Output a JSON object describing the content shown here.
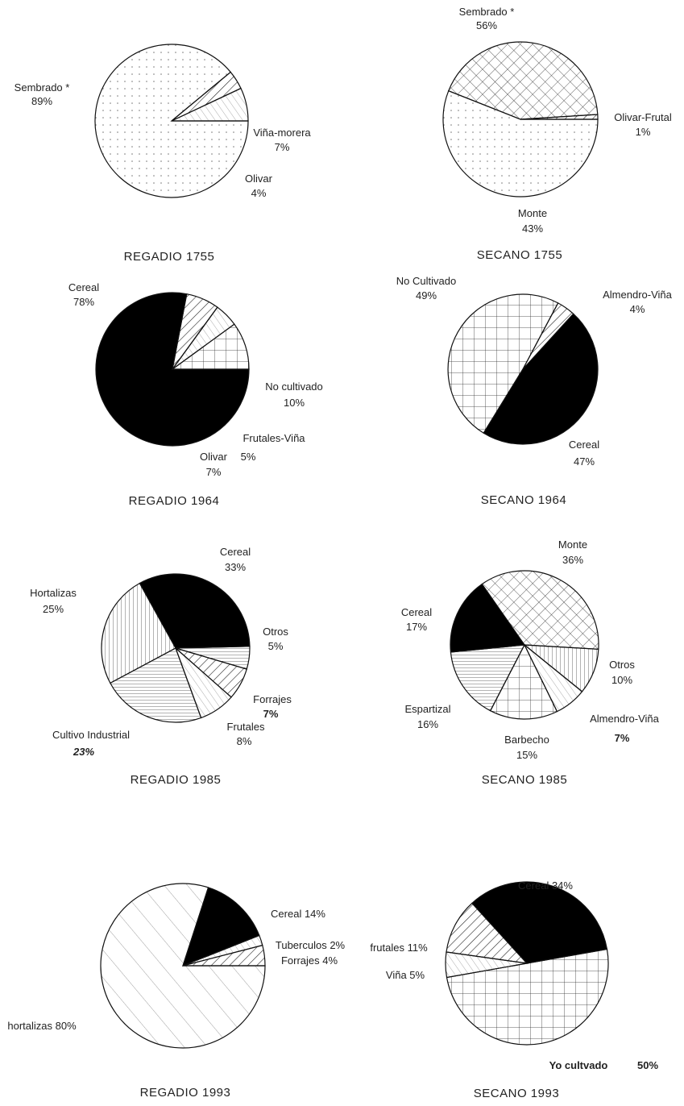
{
  "chart_data": [
    {
      "id": "regadio_1755",
      "type": "pie",
      "title": "REGADIO 1755",
      "slices": [
        {
          "label": "Sembrado *",
          "value": 89,
          "pct_label": "89%",
          "pattern": "dots"
        },
        {
          "label": "Olivar",
          "value": 4,
          "pct_label": "4%",
          "pattern": "hatch"
        },
        {
          "label": "Viña-morera",
          "value": 7,
          "pct_label": "7%",
          "pattern": "lighthatch"
        }
      ]
    },
    {
      "id": "secano_1755",
      "type": "pie",
      "title": "SECANO 1755",
      "slices": [
        {
          "label": "Sembrado *",
          "value": 56,
          "pct_label": "56%",
          "pattern": "dots"
        },
        {
          "label": "Monte",
          "value": 43,
          "pct_label": "43%",
          "pattern": "crosshatch"
        },
        {
          "label": "Olivar-Frutal",
          "value": 1,
          "pct_label": "1%",
          "pattern": "hatch"
        }
      ]
    },
    {
      "id": "regadio_1964",
      "type": "pie",
      "title": "REGADIO 1964",
      "slices": [
        {
          "label": "Cereal",
          "value": 78,
          "pct_label": "78%",
          "pattern": "black"
        },
        {
          "label": "Olivar",
          "value": 7,
          "pct_label": "7%",
          "pattern": "hatch"
        },
        {
          "label": "Frutales-Viña",
          "value": 5,
          "pct_label": "5%",
          "pattern": "lighthatch"
        },
        {
          "label": "No cultivado",
          "value": 10,
          "pct_label": "10%",
          "pattern": "grid"
        }
      ]
    },
    {
      "id": "secano_1964",
      "type": "pie",
      "title": "SECANO 1964",
      "slices": [
        {
          "label": "Almendro-Viña",
          "value": 4,
          "pct_label": "4%",
          "pattern": "hatch"
        },
        {
          "label": "Cereal",
          "value": 47,
          "pct_label": "47%",
          "pattern": "black"
        },
        {
          "label": "No Cultivado",
          "value": 49,
          "pct_label": "49%",
          "pattern": "grid"
        }
      ]
    },
    {
      "id": "regadio_1985",
      "type": "pie",
      "title": "REGADIO 1985",
      "slices": [
        {
          "label": "Cereal",
          "value": 33,
          "pct_label": "33%",
          "pattern": "black"
        },
        {
          "label": "Otros",
          "value": 5,
          "pct_label": "5%",
          "pattern": "hlines"
        },
        {
          "label": "Forrajes",
          "value": 7,
          "pct_label": "7%",
          "pattern": "hatch"
        },
        {
          "label": "Frutales",
          "value": 8,
          "pct_label": "8%",
          "pattern": "lighthatch"
        },
        {
          "label": "Cultivo Industrial",
          "value": 23,
          "pct_label": "23%",
          "pattern": "hlines"
        },
        {
          "label": "Hortalizas",
          "value": 25,
          "pct_label": "25%",
          "pattern": "vlines"
        }
      ]
    },
    {
      "id": "secano_1985",
      "type": "pie",
      "title": "SECANO 1985",
      "slices": [
        {
          "label": "Monte",
          "value": 36,
          "pct_label": "36%",
          "pattern": "crosshatch"
        },
        {
          "label": "Otros",
          "value": 10,
          "pct_label": "10%",
          "pattern": "vlines"
        },
        {
          "label": "Almendro-Viña",
          "value": 7,
          "pct_label": "7%",
          "pattern": "lighthatch"
        },
        {
          "label": "Barbecho",
          "value": 15,
          "pct_label": "15%",
          "pattern": "grid"
        },
        {
          "label": "Espartizal",
          "value": 16,
          "pct_label": "16%",
          "pattern": "hlines"
        },
        {
          "label": "Cereal",
          "value": 17,
          "pct_label": "17%",
          "pattern": "black"
        }
      ]
    },
    {
      "id": "regadio_1993",
      "type": "pie",
      "title": "REGADIO 1993",
      "slices": [
        {
          "label": "Cereal",
          "value": 14,
          "pct_label": "14%",
          "pattern": "black"
        },
        {
          "label": "Tuberculos",
          "value": 2,
          "pct_label": "2%",
          "pattern": "lighthatch"
        },
        {
          "label": "Forrajes",
          "value": 4,
          "pct_label": "4%",
          "pattern": "hatch"
        },
        {
          "label": "hortalizas",
          "value": 80,
          "pct_label": "80%",
          "pattern": "widehatch"
        }
      ]
    },
    {
      "id": "secano_1993",
      "type": "pie",
      "title": "SECANO 1993",
      "slices": [
        {
          "label": "No cultivado",
          "value": 50,
          "pct_label": "50%",
          "pattern": "grid"
        },
        {
          "label": "Viña",
          "value": 5,
          "pct_label": "5%",
          "pattern": "lighthatch"
        },
        {
          "label": "frutales",
          "value": 11,
          "pct_label": "11%",
          "pattern": "hatch"
        },
        {
          "label": "Cereal",
          "value": 34,
          "pct_label": "34%",
          "pattern": "black"
        }
      ]
    }
  ],
  "labels": {
    "r1755": {
      "title": "REGADIO 1755",
      "sembrado": "Sembrado *",
      "sembrado_pct": "89%",
      "vina": "Viña-morera",
      "vina_pct": "7%",
      "olivar": "Olivar",
      "olivar_pct": "4%"
    },
    "s1755": {
      "title": "SECANO 1755",
      "sembrado": "Sembrado *",
      "sembrado_pct": "56%",
      "olivar": "Olivar-Frutal",
      "olivar_pct": "1%",
      "monte": "Monte",
      "monte_pct": "43%"
    },
    "r1964": {
      "title": "REGADIO 1964",
      "cereal": "Cereal",
      "cereal_pct": "78%",
      "nocult": "No cultivado",
      "nocult_pct": "10%",
      "frutales": "Frutales-Viña",
      "frutales_pct": "5%",
      "olivar": "Olivar",
      "olivar_pct": "7%"
    },
    "s1964": {
      "title": "SECANO 1964",
      "nocult": "No Cultivado",
      "nocult_pct": "49%",
      "almendro": "Almendro-Viña",
      "almendro_pct": "4%",
      "cereal": "Cereal",
      "cereal_pct": "47%"
    },
    "r1985": {
      "title": "REGADIO 1985",
      "cereal": "Cereal",
      "cereal_pct": "33%",
      "otros": "Otros",
      "otros_pct": "5%",
      "hortalizas": "Hortalizas",
      "hortalizas_pct": "25%",
      "forrajes": "Forrajes",
      "forrajes_pct": "7%",
      "frutales": "Frutales",
      "frutales_pct": "8%",
      "industrial": "Cultivo Industrial",
      "industrial_pct": "23%"
    },
    "s1985": {
      "title": "SECANO 1985",
      "monte": "Monte",
      "monte_pct": "36%",
      "cereal": "Cereal",
      "cereal_pct": "17%",
      "otros": "Otros",
      "otros_pct": "10%",
      "espartizal": "Espartizal",
      "espartizal_pct": "16%",
      "almendro": "Almendro-Viña",
      "almendro_pct": "7%",
      "barbecho": "Barbecho",
      "barbecho_pct": "15%"
    },
    "r1993": {
      "title": "REGADIO 1993",
      "cereal": "Cereal  14%",
      "tuberculos": "Tuberculos  2%",
      "forrajes": "Forrajes  4%",
      "hortalizas": "hortalizas  80%"
    },
    "s1993": {
      "title": "SECANO 1993",
      "cereal": "Cereal  34%",
      "frutales": "frutales  11%",
      "vina": "Viña  5%",
      "nocult": "Yo cultvado",
      "nocult_pct": "50%"
    }
  }
}
